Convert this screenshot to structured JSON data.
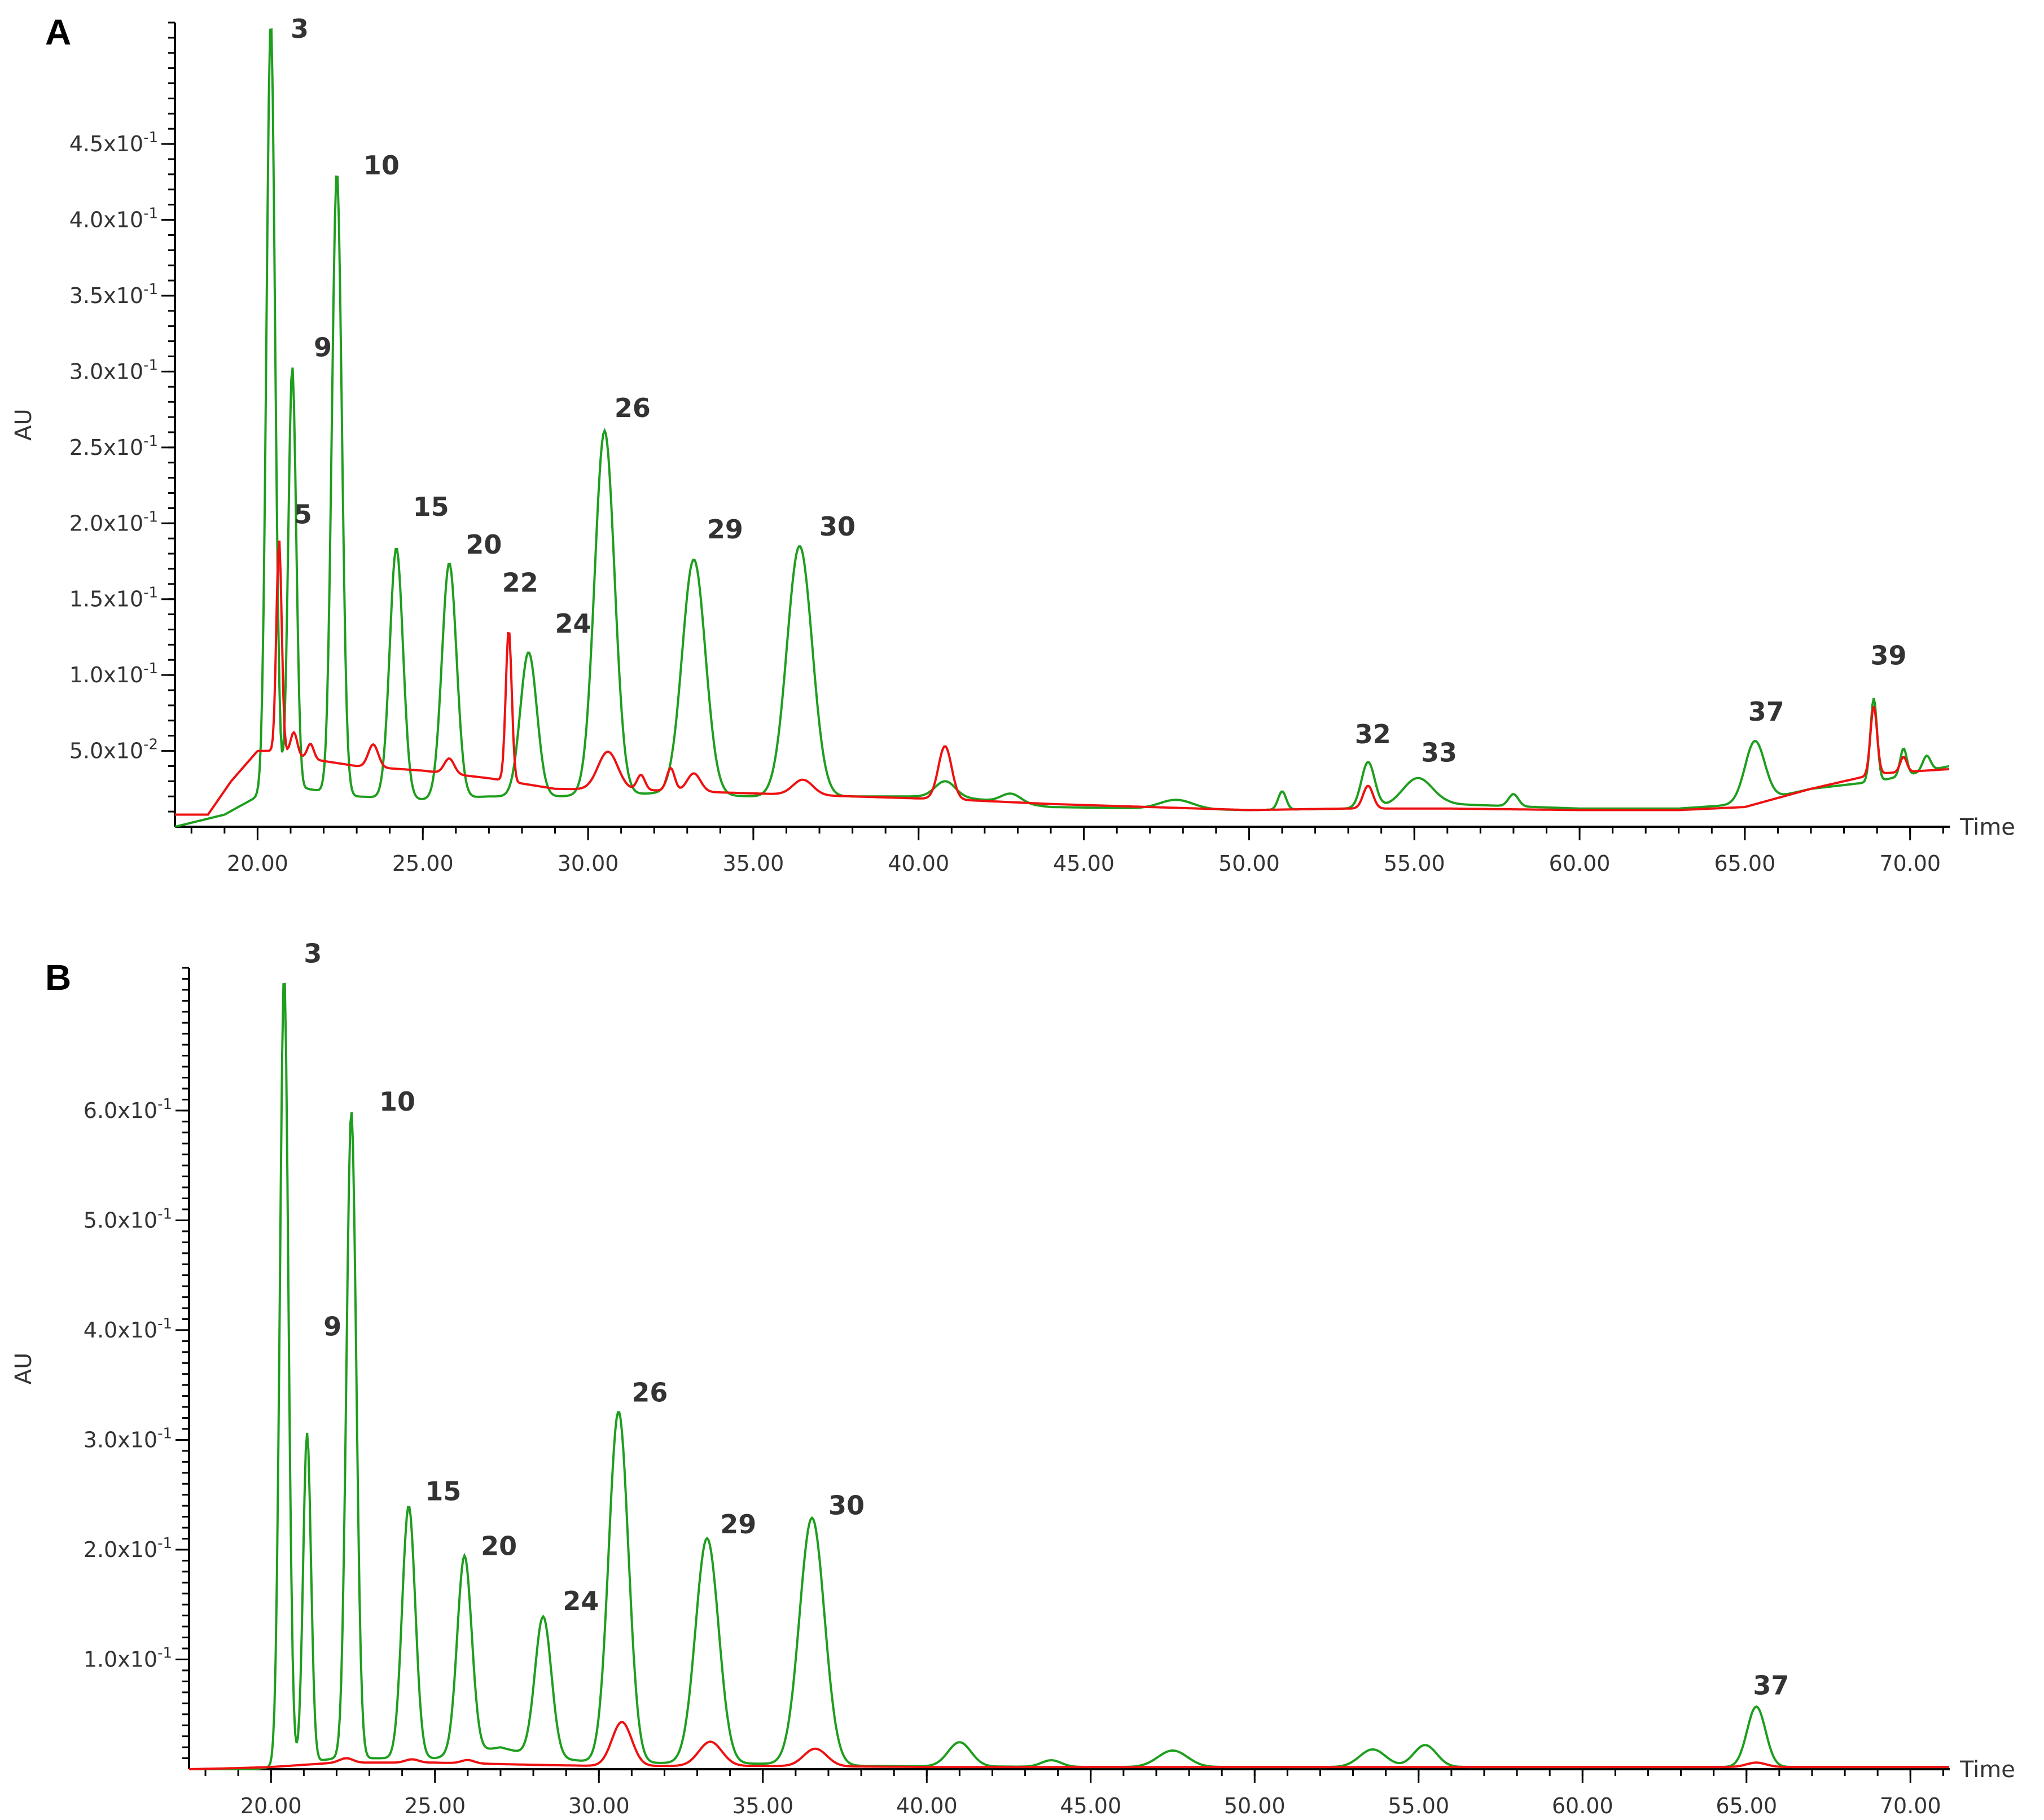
{
  "chart_data": [
    {
      "type": "line",
      "panel": "A",
      "xlabel": "Time",
      "ylabel": "AU",
      "xlim": [
        17.5,
        71.2
      ],
      "ylim": [
        0.0,
        0.53
      ],
      "baseline": 0.0,
      "x_ticks": [
        20,
        25,
        30,
        35,
        40,
        45,
        50,
        55,
        60,
        65,
        70
      ],
      "x_tick_labels": [
        "20.00",
        "25.00",
        "30.00",
        "35.00",
        "40.00",
        "45.00",
        "50.00",
        "55.00",
        "60.00",
        "65.00",
        "70.00"
      ],
      "y_ticks": [
        0.05,
        0.1,
        0.15,
        0.2,
        0.25,
        0.3,
        0.35,
        0.4,
        0.45
      ],
      "y_tick_labels": [
        {
          "mant": "5.0x10",
          "exp": "-2"
        },
        {
          "mant": "1.0x10",
          "exp": "-1"
        },
        {
          "mant": "1.5x10",
          "exp": "-1"
        },
        {
          "mant": "2.0x10",
          "exp": "-1"
        },
        {
          "mant": "2.5x10",
          "exp": "-1"
        },
        {
          "mant": "3.0x10",
          "exp": "-1"
        },
        {
          "mant": "3.5x10",
          "exp": "-1"
        },
        {
          "mant": "4.0x10",
          "exp": "-1"
        },
        {
          "mant": "4.5x10",
          "exp": "-1"
        }
      ],
      "series": [
        {
          "name": "green",
          "color": "#1e9e1e",
          "base": [
            [
              17.5,
              0.0
            ],
            [
              19.0,
              0.008
            ],
            [
              20.0,
              0.02
            ],
            [
              21.5,
              0.025
            ],
            [
              23,
              0.02
            ],
            [
              25,
              0.018
            ],
            [
              27,
              0.02
            ],
            [
              29,
              0.02
            ],
            [
              32,
              0.022
            ],
            [
              35,
              0.02
            ],
            [
              38,
              0.02
            ],
            [
              41,
              0.02
            ],
            [
              44,
              0.013
            ],
            [
              50,
              0.011
            ],
            [
              53,
              0.012
            ],
            [
              56,
              0.015
            ],
            [
              60,
              0.012
            ],
            [
              63,
              0.012
            ],
            [
              65,
              0.015
            ],
            [
              67,
              0.025
            ],
            [
              69,
              0.03
            ],
            [
              71.2,
              0.04
            ]
          ],
          "peaks": [
            [
              20.4,
              0.51,
              0.13
            ],
            [
              21.05,
              0.28,
              0.12
            ],
            [
              22.4,
              0.41,
              0.15
            ],
            [
              24.2,
              0.165,
              0.2
            ],
            [
              25.8,
              0.155,
              0.22
            ],
            [
              28.2,
              0.095,
              0.25
            ],
            [
              30.5,
              0.24,
              0.3
            ],
            [
              33.2,
              0.155,
              0.35
            ],
            [
              36.4,
              0.165,
              0.38
            ],
            [
              40.8,
              0.01,
              0.3
            ],
            [
              42.8,
              0.006,
              0.3
            ],
            [
              47.8,
              0.006,
              0.5
            ],
            [
              51.0,
              0.012,
              0.12
            ],
            [
              53.6,
              0.03,
              0.2
            ],
            [
              55.1,
              0.018,
              0.45
            ],
            [
              58.0,
              0.008,
              0.15
            ],
            [
              65.3,
              0.04,
              0.3
            ],
            [
              68.9,
              0.055,
              0.1
            ],
            [
              69.8,
              0.018,
              0.1
            ],
            [
              70.5,
              0.01,
              0.12
            ]
          ]
        },
        {
          "name": "red",
          "color": "#ee1111",
          "base": [
            [
              17.5,
              0.008
            ],
            [
              18.5,
              0.008
            ],
            [
              19.2,
              0.03
            ],
            [
              20.0,
              0.05
            ],
            [
              20.6,
              0.05
            ],
            [
              21.5,
              0.045
            ],
            [
              23,
              0.04
            ],
            [
              25,
              0.037
            ],
            [
              27,
              0.032
            ],
            [
              29,
              0.025
            ],
            [
              32,
              0.024
            ],
            [
              35,
              0.022
            ],
            [
              38,
              0.02
            ],
            [
              41,
              0.018
            ],
            [
              44,
              0.015
            ],
            [
              50,
              0.011
            ],
            [
              53,
              0.012
            ],
            [
              56,
              0.012
            ],
            [
              60,
              0.011
            ],
            [
              63,
              0.011
            ],
            [
              65,
              0.013
            ],
            [
              67,
              0.025
            ],
            [
              69,
              0.035
            ],
            [
              71.2,
              0.038
            ]
          ],
          "peaks": [
            [
              20.65,
              0.14,
              0.08
            ],
            [
              21.1,
              0.015,
              0.1
            ],
            [
              21.6,
              0.01,
              0.1
            ],
            [
              23.5,
              0.015,
              0.15
            ],
            [
              25.8,
              0.01,
              0.15
            ],
            [
              27.6,
              0.1,
              0.09
            ],
            [
              30.6,
              0.025,
              0.3
            ],
            [
              31.6,
              0.01,
              0.12
            ],
            [
              32.5,
              0.015,
              0.12
            ],
            [
              33.2,
              0.012,
              0.2
            ],
            [
              36.5,
              0.01,
              0.3
            ],
            [
              40.8,
              0.035,
              0.2
            ],
            [
              53.6,
              0.015,
              0.15
            ],
            [
              68.9,
              0.045,
              0.1
            ],
            [
              69.8,
              0.01,
              0.1
            ]
          ]
        }
      ],
      "peak_labels": [
        {
          "text": "3",
          "x": 21.0,
          "y": 0.52
        },
        {
          "text": "10",
          "x": 23.2,
          "y": 0.43
        },
        {
          "text": "9",
          "x": 21.7,
          "y": 0.31
        },
        {
          "text": "5",
          "x": 21.1,
          "y": 0.2
        },
        {
          "text": "15",
          "x": 24.7,
          "y": 0.205
        },
        {
          "text": "20",
          "x": 26.3,
          "y": 0.18
        },
        {
          "text": "22",
          "x": 27.4,
          "y": 0.155
        },
        {
          "text": "24",
          "x": 29.0,
          "y": 0.128
        },
        {
          "text": "26",
          "x": 30.8,
          "y": 0.27
        },
        {
          "text": "29",
          "x": 33.6,
          "y": 0.19
        },
        {
          "text": "30",
          "x": 37.0,
          "y": 0.192
        },
        {
          "text": "32",
          "x": 53.2,
          "y": 0.055
        },
        {
          "text": "33",
          "x": 55.2,
          "y": 0.043
        },
        {
          "text": "37",
          "x": 65.1,
          "y": 0.07
        },
        {
          "text": "39",
          "x": 68.8,
          "y": 0.107
        }
      ]
    },
    {
      "type": "line",
      "panel": "B",
      "xlabel": "Time",
      "ylabel": "AU",
      "xlim": [
        17.5,
        71.2
      ],
      "ylim": [
        0.0,
        0.73
      ],
      "baseline": 0.0,
      "x_ticks": [
        20,
        25,
        30,
        35,
        40,
        45,
        50,
        55,
        60,
        65,
        70
      ],
      "x_tick_labels": [
        "20.00",
        "25.00",
        "30.00",
        "35.00",
        "40.00",
        "45.00",
        "50.00",
        "55.00",
        "60.00",
        "65.00",
        "70.00"
      ],
      "y_ticks": [
        0.1,
        0.2,
        0.3,
        0.4,
        0.5,
        0.6
      ],
      "y_tick_labels": [
        {
          "mant": "1.0x10",
          "exp": "-1"
        },
        {
          "mant": "2.0x10",
          "exp": "-1"
        },
        {
          "mant": "3.0x10",
          "exp": "-1"
        },
        {
          "mant": "4.0x10",
          "exp": "-1"
        },
        {
          "mant": "5.0x10",
          "exp": "-1"
        },
        {
          "mant": "6.0x10",
          "exp": "-1"
        }
      ],
      "series": [
        {
          "name": "green",
          "color": "#1e9e1e",
          "base": [
            [
              17.5,
              0.0
            ],
            [
              19.5,
              0.0
            ],
            [
              20.0,
              0.002
            ],
            [
              22,
              0.01
            ],
            [
              25,
              0.01
            ],
            [
              27,
              0.02
            ],
            [
              28,
              0.012
            ],
            [
              30,
              0.006
            ],
            [
              35,
              0.005
            ],
            [
              38,
              0.003
            ],
            [
              45,
              0.002
            ],
            [
              50,
              0.002
            ],
            [
              55,
              0.002
            ],
            [
              60,
              0.002
            ],
            [
              65,
              0.002
            ],
            [
              71.2,
              0.002
            ]
          ],
          "peaks": [
            [
              20.4,
              0.72,
              0.13
            ],
            [
              21.1,
              0.3,
              0.12
            ],
            [
              22.45,
              0.59,
              0.15
            ],
            [
              24.2,
              0.23,
              0.2
            ],
            [
              25.9,
              0.18,
              0.22
            ],
            [
              28.3,
              0.128,
              0.25
            ],
            [
              30.6,
              0.32,
              0.3
            ],
            [
              33.3,
              0.205,
              0.35
            ],
            [
              36.5,
              0.225,
              0.38
            ],
            [
              41.0,
              0.022,
              0.35
            ],
            [
              43.8,
              0.006,
              0.3
            ],
            [
              47.5,
              0.015,
              0.45
            ],
            [
              53.6,
              0.016,
              0.4
            ],
            [
              55.2,
              0.02,
              0.35
            ],
            [
              65.3,
              0.055,
              0.28
            ]
          ]
        },
        {
          "name": "red",
          "color": "#ee1111",
          "base": [
            [
              17.5,
              0.0
            ],
            [
              19.0,
              0.001
            ],
            [
              20,
              0.002
            ],
            [
              22,
              0.006
            ],
            [
              25,
              0.006
            ],
            [
              28,
              0.004
            ],
            [
              30,
              0.003
            ],
            [
              35,
              0.003
            ],
            [
              40,
              0.002
            ],
            [
              50,
              0.002
            ],
            [
              60,
              0.002
            ],
            [
              71.2,
              0.002
            ]
          ],
          "peaks": [
            [
              22.3,
              0.004,
              0.2
            ],
            [
              24.3,
              0.003,
              0.2
            ],
            [
              26.0,
              0.003,
              0.2
            ],
            [
              30.7,
              0.04,
              0.3
            ],
            [
              33.4,
              0.022,
              0.35
            ],
            [
              36.6,
              0.016,
              0.35
            ],
            [
              65.3,
              0.004,
              0.3
            ]
          ]
        }
      ],
      "peak_labels": [
        {
          "text": "3",
          "x": 21.0,
          "y": 0.735
        },
        {
          "text": "10",
          "x": 23.3,
          "y": 0.6
        },
        {
          "text": "9",
          "x": 21.6,
          "y": 0.395
        },
        {
          "text": "15",
          "x": 24.7,
          "y": 0.245
        },
        {
          "text": "20",
          "x": 26.4,
          "y": 0.195
        },
        {
          "text": "24",
          "x": 28.9,
          "y": 0.145
        },
        {
          "text": "26",
          "x": 31.0,
          "y": 0.335
        },
        {
          "text": "29",
          "x": 33.7,
          "y": 0.215
        },
        {
          "text": "30",
          "x": 37.0,
          "y": 0.232
        },
        {
          "text": "37",
          "x": 65.2,
          "y": 0.068
        }
      ]
    }
  ]
}
